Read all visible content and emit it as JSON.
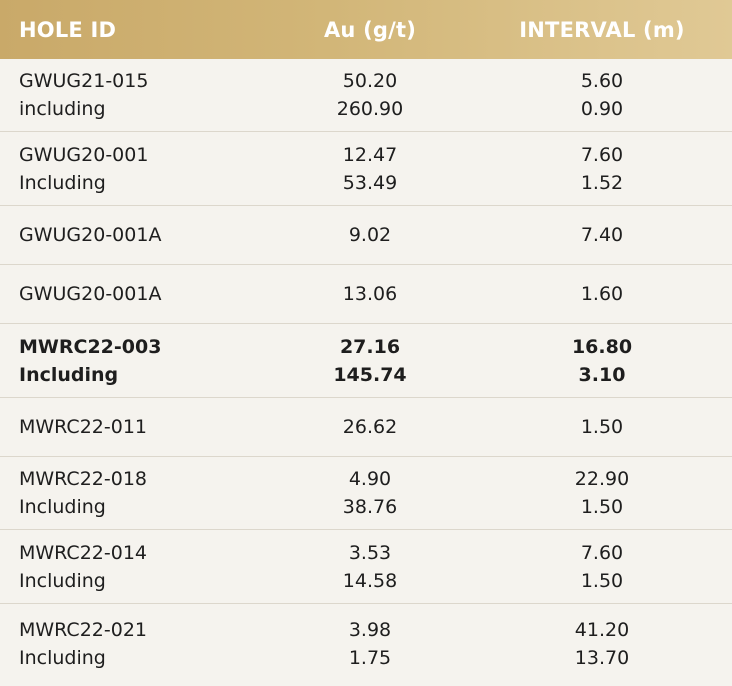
{
  "chart_data": {
    "type": "table",
    "columns": [
      "HOLE ID",
      "Au (g/t)",
      "INTERVAL (m)"
    ],
    "rows": [
      {
        "hole": [
          "GWUG21-015",
          "including"
        ],
        "au": [
          "50.20",
          "260.90"
        ],
        "interval": [
          "5.60",
          "0.90"
        ],
        "bold": false
      },
      {
        "hole": [
          "GWUG20-001",
          "Including"
        ],
        "au": [
          "12.47",
          "53.49"
        ],
        "interval": [
          "7.60",
          "1.52"
        ],
        "bold": false
      },
      {
        "hole": [
          "GWUG20-001A"
        ],
        "au": [
          "9.02"
        ],
        "interval": [
          "7.40"
        ],
        "bold": false
      },
      {
        "hole": [
          "GWUG20-001A"
        ],
        "au": [
          "13.06"
        ],
        "interval": [
          "1.60"
        ],
        "bold": false
      },
      {
        "hole": [
          "MWRC22-003",
          "Including"
        ],
        "au": [
          "27.16",
          "145.74"
        ],
        "interval": [
          "16.80",
          "3.10"
        ],
        "bold": true
      },
      {
        "hole": [
          "MWRC22-011"
        ],
        "au": [
          "26.62"
        ],
        "interval": [
          "1.50"
        ],
        "bold": false
      },
      {
        "hole": [
          "MWRC22-018",
          "Including"
        ],
        "au": [
          "4.90",
          "38.76"
        ],
        "interval": [
          "22.90",
          "1.50"
        ],
        "bold": false
      },
      {
        "hole": [
          "MWRC22-014",
          "Including"
        ],
        "au": [
          "3.53",
          "14.58"
        ],
        "interval": [
          "7.60",
          "1.50"
        ],
        "bold": false
      },
      {
        "hole": [
          "MWRC22-021",
          "Including"
        ],
        "au": [
          "3.98",
          "1.75"
        ],
        "interval": [
          "41.20",
          "13.70"
        ],
        "bold": false
      }
    ]
  },
  "colors": {
    "header_start": "#c9a969",
    "header_end": "#e0c995",
    "background": "#f5f3ee",
    "divider": "#dcd7cc",
    "text": "#1e1e1e"
  }
}
